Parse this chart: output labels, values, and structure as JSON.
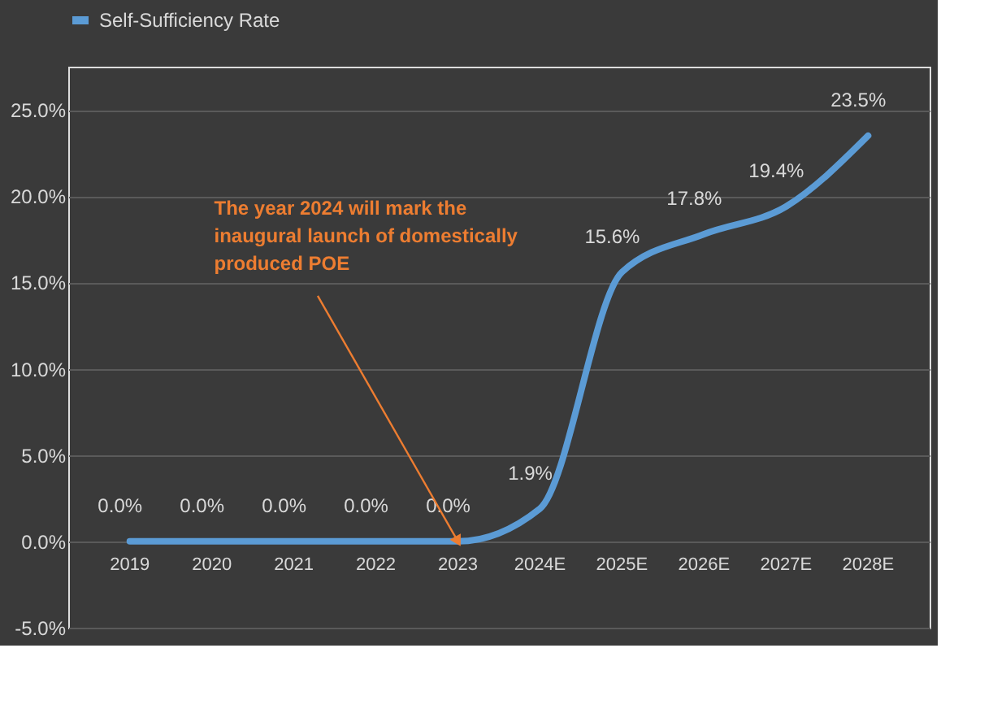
{
  "chart_data": {
    "type": "line",
    "categories": [
      "2019",
      "2020",
      "2021",
      "2022",
      "2023",
      "2024E",
      "2025E",
      "2026E",
      "2027E",
      "2028E"
    ],
    "series": [
      {
        "name": "Self-Sufficiency Rate",
        "color": "#5b9bd5",
        "values": [
          0,
          0,
          0,
          0,
          0,
          1.9,
          15.6,
          17.8,
          19.4,
          23.5
        ],
        "value_labels": [
          "0.0%",
          "0.0%",
          "0.0%",
          "0.0%",
          "0.0%",
          "1.9%",
          "15.6%",
          "17.8%",
          "19.4%",
          "23.5%"
        ]
      }
    ],
    "ylim": [
      -5,
      27.5
    ],
    "yticks": [
      {
        "value": -5,
        "label": "-5.0%"
      },
      {
        "value": 0,
        "label": "0.0%"
      },
      {
        "value": 5,
        "label": "5.0%"
      },
      {
        "value": 10,
        "label": "10.0%"
      },
      {
        "value": 15,
        "label": "15.0%"
      },
      {
        "value": 20,
        "label": "20.0%"
      },
      {
        "value": 25,
        "label": "25.0%"
      }
    ],
    "grid": "y",
    "legend": "top",
    "marker": "none",
    "line_style": "solid",
    "annotations": [
      {
        "text": "The year 2024 will mark the inaugural launch of domestically produced POE",
        "x": "2023",
        "y": 0
      }
    ]
  }
}
